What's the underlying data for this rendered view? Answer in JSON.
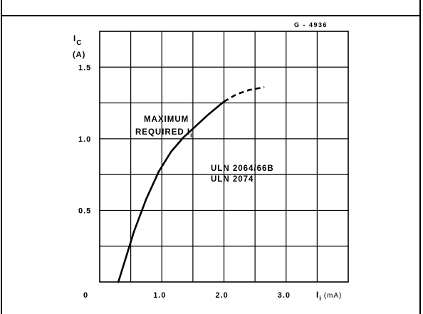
{
  "chart_data": {
    "type": "line",
    "figure_code": "G - 4936",
    "ylabel_main": "I",
    "ylabel_sub": "C",
    "ylabel_unit": "(A)",
    "xlabel_main": "I",
    "xlabel_sub": "i",
    "xlabel_unit": "(mA)",
    "xlim": [
      0,
      3.0
    ],
    "ylim": [
      0,
      1.5
    ],
    "x_grid_step": 0.5,
    "y_grid_step": 0.25,
    "x_ticks": [
      {
        "value": 0,
        "label": "0"
      },
      {
        "value": 1.0,
        "label": "1.0"
      },
      {
        "value": 2.0,
        "label": "2.0"
      },
      {
        "value": 3.0,
        "label": "3.0"
      }
    ],
    "y_ticks": [
      {
        "value": 0.5,
        "label": "0.5"
      },
      {
        "value": 1.0,
        "label": "1.0"
      },
      {
        "value": 1.5,
        "label": "1.5"
      }
    ],
    "grid": true,
    "series": [
      {
        "label_lines": [
          "ULN 2064/66B",
          "ULN 2074"
        ],
        "style": "solid",
        "x": [
          0.3,
          0.55,
          0.75,
          0.95,
          1.15,
          1.35,
          1.55,
          1.75,
          2.0
        ],
        "y": [
          0.0,
          0.35,
          0.58,
          0.77,
          0.91,
          1.01,
          1.09,
          1.17,
          1.26
        ]
      },
      {
        "style": "dashed",
        "x": [
          2.0,
          2.2,
          2.4,
          2.65
        ],
        "y": [
          1.26,
          1.31,
          1.34,
          1.36
        ]
      }
    ],
    "annotation": {
      "line1": "MAXIMUM",
      "line2_main": "REQUIRED I",
      "line2_sub": "i"
    }
  }
}
